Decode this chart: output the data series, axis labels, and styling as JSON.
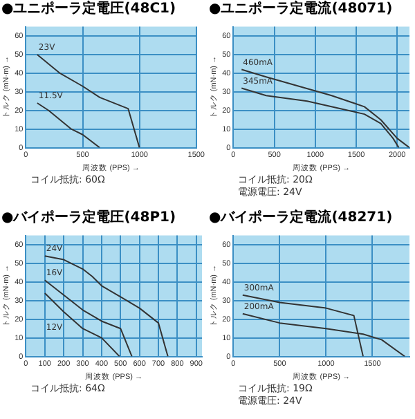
{
  "chart_data": [
    {
      "type": "line",
      "title": "●ユニポーラ定電圧(48C1)",
      "xlabel": "周波数 (PPS) →",
      "ylabel": "トルク (mN·m) →",
      "annotations": [
        "コイル抵抗: 60Ω"
      ],
      "xlim": [
        0,
        1500
      ],
      "xticks": [
        0,
        500,
        1000,
        1500
      ],
      "ylim": [
        0,
        65
      ],
      "yticks": [
        0,
        10,
        20,
        30,
        40,
        50,
        60
      ],
      "grid": true,
      "marker": "none",
      "line_style": "solid",
      "series": [
        {
          "name": "23V",
          "color": "#333333",
          "x": [
            100,
            300,
            500,
            650,
            900,
            1000
          ],
          "values": [
            50,
            40,
            33,
            27,
            21,
            0
          ]
        },
        {
          "name": "11.5V",
          "color": "#333333",
          "x": [
            100,
            200,
            400,
            500,
            650
          ],
          "values": [
            24,
            20,
            10,
            7,
            0
          ]
        }
      ]
    },
    {
      "type": "line",
      "title": "●ユニポーラ定電流(48071)",
      "xlabel": "周波数 (PPS) →",
      "ylabel": "トルク (mN·m) →",
      "annotations": [
        "コイル抵抗: 20Ω",
        "電源電圧: 24V"
      ],
      "xlim": [
        0,
        2150
      ],
      "xticks": [
        0,
        500,
        1000,
        1500,
        2000
      ],
      "ylim": [
        0,
        65
      ],
      "yticks": [
        0,
        10,
        20,
        30,
        40,
        50,
        60
      ],
      "grid": true,
      "marker": "none",
      "line_style": "solid",
      "series": [
        {
          "name": "460mA",
          "color": "#333333",
          "x": [
            100,
            400,
            800,
            1200,
            1600,
            1800,
            2000,
            2150
          ],
          "values": [
            42,
            38,
            33,
            28,
            22,
            15,
            5,
            0
          ]
        },
        {
          "name": "345mA",
          "color": "#333333",
          "x": [
            100,
            400,
            900,
            1300,
            1600,
            1800,
            1950,
            2020
          ],
          "values": [
            32,
            28,
            25,
            21,
            18,
            13,
            5,
            0
          ]
        }
      ]
    },
    {
      "type": "line",
      "title": "●バイポーラ定電圧(48P1)",
      "xlabel": "周波数 (PPS) →",
      "ylabel": "トルク (mN·m) →",
      "annotations": [
        "コイル抵抗: 64Ω"
      ],
      "xlim": [
        0,
        930
      ],
      "xticks": [
        0,
        100,
        200,
        300,
        400,
        500,
        600,
        700,
        800,
        900
      ],
      "ylim": [
        0,
        65
      ],
      "yticks": [
        0,
        10,
        20,
        30,
        40,
        50,
        60
      ],
      "grid": true,
      "marker": "none",
      "line_style": "solid",
      "series": [
        {
          "name": "24V",
          "color": "#333333",
          "x": [
            100,
            200,
            300,
            350,
            400,
            500,
            600,
            700,
            750
          ],
          "values": [
            54,
            52,
            47,
            43,
            38,
            32,
            26,
            18,
            0
          ]
        },
        {
          "name": "16V",
          "color": "#333333",
          "x": [
            100,
            200,
            300,
            400,
            500,
            560
          ],
          "values": [
            41,
            33,
            25,
            19,
            15,
            0
          ]
        },
        {
          "name": "12V",
          "color": "#333333",
          "x": [
            100,
            200,
            300,
            400,
            495
          ],
          "values": [
            34,
            24,
            15,
            10,
            0
          ]
        }
      ]
    },
    {
      "type": "line",
      "title": "●バイポーラ定電流(48271)",
      "xlabel": "周波数 (PPS) →",
      "ylabel": "トルク (mN·m) →",
      "annotations": [
        "コイル抵抗: 19Ω",
        "電源電圧: 24V"
      ],
      "xlim": [
        0,
        1900
      ],
      "xticks": [
        0,
        500,
        1000,
        1500
      ],
      "ylim": [
        0,
        65
      ],
      "yticks": [
        0,
        10,
        20,
        30,
        40,
        50,
        60
      ],
      "grid": true,
      "marker": "none",
      "line_style": "solid",
      "series": [
        {
          "name": "300mA",
          "color": "#333333",
          "x": [
            100,
            500,
            1000,
            1300,
            1400
          ],
          "values": [
            33,
            29,
            26,
            22,
            0
          ]
        },
        {
          "name": "200mA",
          "color": "#333333",
          "x": [
            100,
            500,
            1000,
            1400,
            1600,
            1850
          ],
          "values": [
            23,
            18,
            15,
            12,
            9,
            0
          ]
        }
      ]
    }
  ]
}
